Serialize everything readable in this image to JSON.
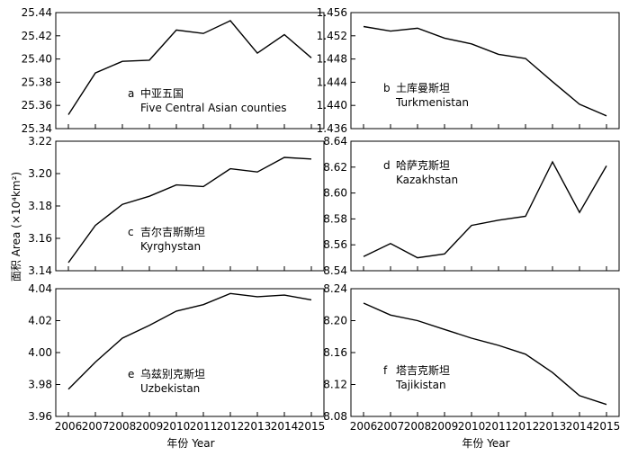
{
  "axis_titles": {
    "y": "面积 Area (×10⁴km²)",
    "x_left": "年份 Year",
    "x_right": "年份 Year"
  },
  "chart_data": [
    {
      "type": "line",
      "panel": "a",
      "label_cn": "中亚五国",
      "label_en": "Five Central Asian counties",
      "x": [
        2006,
        2007,
        2008,
        2009,
        2010,
        2011,
        2012,
        2013,
        2014,
        2015
      ],
      "values": [
        25.352,
        25.388,
        25.398,
        25.399,
        25.425,
        25.422,
        25.433,
        25.405,
        25.421,
        25.401
      ],
      "yticks": [
        "25.34",
        "25.36",
        "25.38",
        "25.40",
        "25.42",
        "25.44"
      ],
      "ylim": [
        25.34,
        25.44
      ]
    },
    {
      "type": "line",
      "panel": "b",
      "label_cn": "土库曼斯坦",
      "label_en": "Turkmenistan",
      "x": [
        2006,
        2007,
        2008,
        2009,
        2010,
        2011,
        2012,
        2013,
        2014,
        2015
      ],
      "values": [
        1.4536,
        1.4528,
        1.4533,
        1.4516,
        1.4506,
        1.4488,
        1.4481,
        1.4441,
        1.4402,
        1.4382
      ],
      "yticks": [
        "1.436",
        "1.440",
        "1.444",
        "1.448",
        "1.452",
        "1.456"
      ],
      "ylim": [
        1.436,
        1.456
      ]
    },
    {
      "type": "line",
      "panel": "c",
      "label_cn": "吉尔吉斯斯坦",
      "label_en": "Kyrghystan",
      "x": [
        2006,
        2007,
        2008,
        2009,
        2010,
        2011,
        2012,
        2013,
        2014,
        2015
      ],
      "values": [
        3.145,
        3.168,
        3.181,
        3.186,
        3.193,
        3.192,
        3.203,
        3.201,
        3.21,
        3.209
      ],
      "yticks": [
        "3.14",
        "3.16",
        "3.18",
        "3.20",
        "3.22"
      ],
      "ylim": [
        3.14,
        3.22
      ]
    },
    {
      "type": "line",
      "panel": "d",
      "label_cn": "哈萨克斯坦",
      "label_en": "Kazakhstan",
      "x": [
        2006,
        2007,
        2008,
        2009,
        2010,
        2011,
        2012,
        2013,
        2014,
        2015
      ],
      "values": [
        8.551,
        8.561,
        8.55,
        8.553,
        8.575,
        8.579,
        8.582,
        8.624,
        8.585,
        8.621
      ],
      "yticks": [
        "8.54",
        "8.56",
        "8.58",
        "8.60",
        "8.62",
        "8.64"
      ],
      "ylim": [
        8.54,
        8.64
      ]
    },
    {
      "type": "line",
      "panel": "e",
      "label_cn": "乌兹别克斯坦",
      "label_en": "Uzbekistan",
      "x": [
        2006,
        2007,
        2008,
        2009,
        2010,
        2011,
        2012,
        2013,
        2014,
        2015
      ],
      "values": [
        3.977,
        3.994,
        4.009,
        4.017,
        4.026,
        4.03,
        4.037,
        4.035,
        4.036,
        4.033
      ],
      "yticks": [
        "3.96",
        "3.98",
        "4.00",
        "4.02",
        "4.04"
      ],
      "ylim": [
        3.96,
        4.04
      ]
    },
    {
      "type": "line",
      "panel": "f",
      "label_cn": "塔吉克斯坦",
      "label_en": "Tajikistan",
      "x": [
        2006,
        2007,
        2008,
        2009,
        2010,
        2011,
        2012,
        2013,
        2014,
        2015
      ],
      "values": [
        8.222,
        8.207,
        8.2,
        8.189,
        8.178,
        8.169,
        8.158,
        8.135,
        8.106,
        8.095
      ],
      "yticks": [
        "8.08",
        "8.12",
        "8.16",
        "8.20",
        "8.24"
      ],
      "ylim": [
        8.08,
        8.24
      ]
    }
  ]
}
